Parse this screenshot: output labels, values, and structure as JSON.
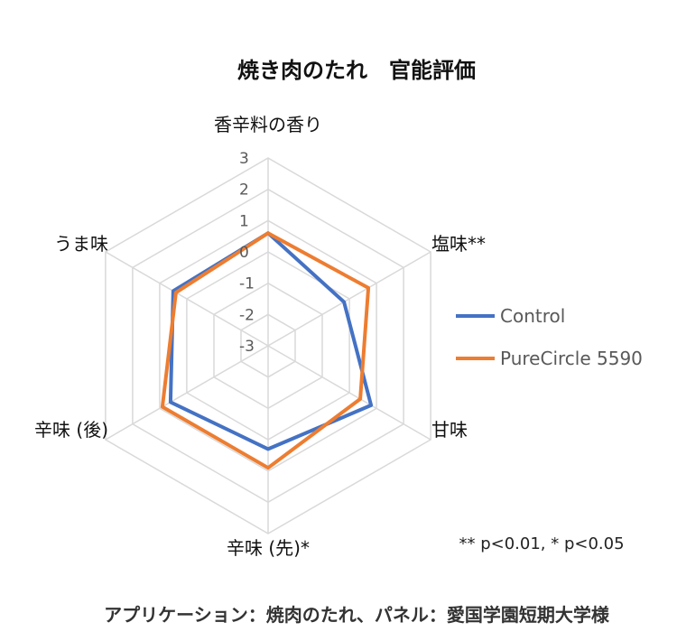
{
  "chart_data": {
    "type": "radar",
    "title": "焼き肉のたれ　官能評価",
    "axes": [
      "香辛料の香り",
      "塩味**",
      "甘味",
      "辛味 (先)*",
      "辛味 (後)",
      "うま味"
    ],
    "range": [
      -3,
      3
    ],
    "ticks": [
      "3",
      "2",
      "1",
      "0",
      "-1",
      "-2",
      "-3"
    ],
    "grid": true,
    "legend_position": "right",
    "series": [
      {
        "name": "Control",
        "color": "#4472C4",
        "values": [
          0.6,
          -0.2,
          0.8,
          0.3,
          0.6,
          0.5
        ]
      },
      {
        "name": "PureCircle 5590",
        "color": "#ED7D31",
        "values": [
          0.6,
          0.7,
          0.4,
          0.9,
          0.9,
          0.4
        ]
      }
    ],
    "note": "** p<0.01, * p<0.05"
  },
  "footer": "アプリケーション：焼肉のたれ、パネル：愛国学園短期大学様"
}
